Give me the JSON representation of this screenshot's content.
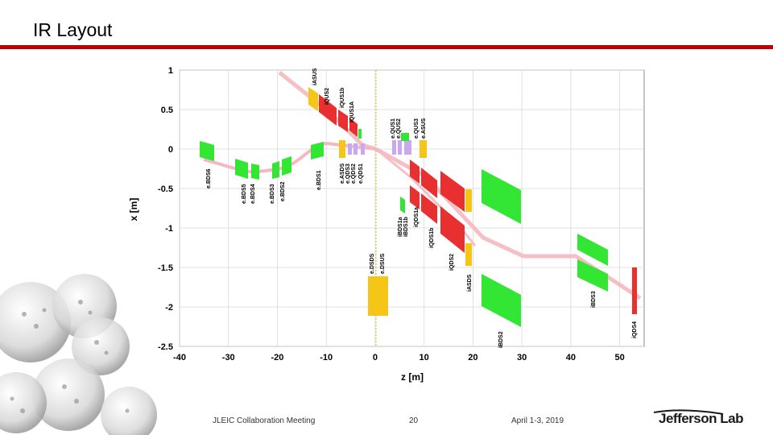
{
  "slide": {
    "title": "IR Layout"
  },
  "footer": {
    "meeting": "JLEIC Collaboration Meeting",
    "page": "20",
    "date": "April 1-3, 2019"
  },
  "logo": {
    "text": "Jefferson Lab"
  },
  "plot": {
    "x_axis_label": "z [m]",
    "y_axis_label": "x [m]",
    "x_ticks": [
      -40,
      -30,
      -20,
      -10,
      0,
      10,
      20,
      30,
      40,
      50
    ],
    "y_ticks": [
      1,
      0.5,
      0,
      -0.5,
      -1,
      -1.5,
      -2,
      -2.5
    ],
    "xlim": [
      -40,
      55
    ],
    "ylim": [
      -2.5,
      1
    ],
    "grid": true,
    "colors": {
      "dipole": "#33e633",
      "quad_focus": "#e83030",
      "solenoid": "#f5c518",
      "small_quad": "#c9a8f0",
      "beam": "#f5b8c0",
      "ip_line": "#c8c800"
    },
    "magnet_labels": [
      "iASUS",
      "iQUS2",
      "iQUS1b",
      "iQUS1A",
      "e.QUS1",
      "e.QUS2",
      "e.QUS3",
      "e.ASUS",
      "e.BDS6",
      "e.BDS5",
      "e.BDS4",
      "e.BDS3",
      "e.BDS2",
      "e.BDS1",
      "e.ASDS",
      "e.QDS3",
      "e.QDS2",
      "e.QDS1",
      "e.DSDS",
      "e.DSUS",
      "iBDS1a",
      "iBDS1b",
      "iQDS1a",
      "iQDS1b",
      "iQDS2",
      "iASDS",
      "iBDS2",
      "iBDS3",
      "iQDS4"
    ]
  }
}
